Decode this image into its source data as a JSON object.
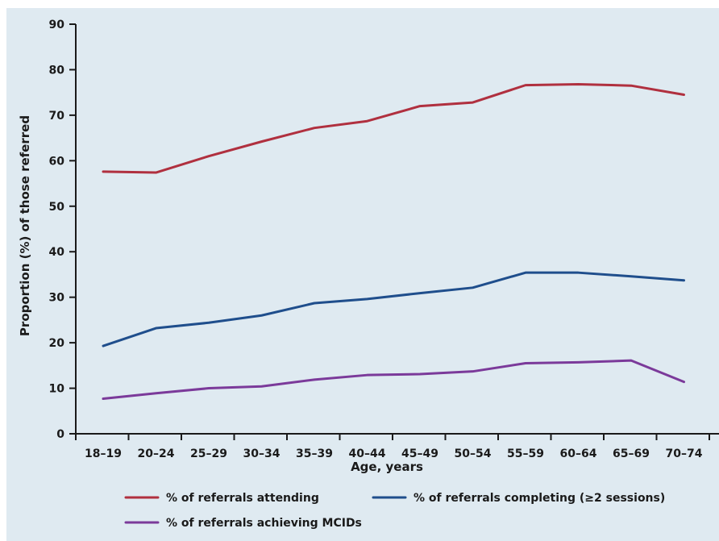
{
  "chart_data": {
    "type": "line",
    "xlabel": "Age, years",
    "ylabel": "Proportion (%) of those referred",
    "ylim": [
      0,
      90
    ],
    "yticks": [
      0,
      10,
      20,
      30,
      40,
      50,
      60,
      70,
      80,
      90
    ],
    "categories": [
      "18–19",
      "20–24",
      "25–29",
      "30–34",
      "35–39",
      "40–44",
      "45–49",
      "50–54",
      "55–59",
      "60–64",
      "65–69",
      "70–74"
    ],
    "grid": false,
    "legend_position": "bottom",
    "series": [
      {
        "name": "% of referrals attending",
        "color": "#b0303f",
        "values": [
          57.6,
          57.4,
          61.0,
          64.2,
          67.2,
          68.7,
          72.0,
          72.8,
          76.6,
          76.8,
          76.5,
          74.5
        ]
      },
      {
        "name": "% of referrals completing (≥2 sessions)",
        "color": "#1f4e8c",
        "values": [
          19.3,
          23.2,
          24.4,
          26.0,
          28.7,
          29.6,
          30.9,
          32.1,
          35.4,
          35.4,
          34.6,
          33.7
        ]
      },
      {
        "name": "% of referrals achieving MCIDs",
        "color": "#7b3a9a",
        "values": [
          7.7,
          8.9,
          10.0,
          10.4,
          11.9,
          12.9,
          13.1,
          13.7,
          15.5,
          15.7,
          16.1,
          11.4
        ]
      }
    ]
  }
}
